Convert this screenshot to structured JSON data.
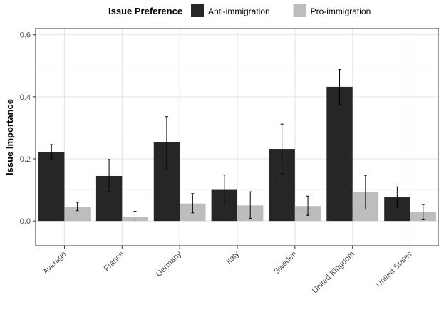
{
  "chart_data": {
    "type": "bar",
    "title": "",
    "xlabel": "",
    "ylabel": "Issue Importance",
    "ylim": [
      -0.08,
      0.62
    ],
    "yticks": [
      0.0,
      0.2,
      0.4,
      0.6
    ],
    "ytick_labels": [
      "0.0",
      "0.2",
      "0.4",
      "0.6"
    ],
    "grid": true,
    "legend": {
      "title": "Issue Preference",
      "placement": "top"
    },
    "categories": [
      "Average",
      "France",
      "Germany",
      "Italy",
      "Sweden",
      "United Kingdom",
      "United States"
    ],
    "series": [
      {
        "name": "Anti-immigration",
        "color": "#262626",
        "values": [
          0.222,
          0.145,
          0.253,
          0.1,
          0.232,
          0.432,
          0.076
        ],
        "err_low": [
          0.2,
          0.094,
          0.17,
          0.054,
          0.152,
          0.376,
          0.044
        ],
        "err_high": [
          0.246,
          0.198,
          0.336,
          0.148,
          0.312,
          0.488,
          0.11
        ]
      },
      {
        "name": "Pro-immigration",
        "color": "#bdbdbd",
        "values": [
          0.046,
          0.013,
          0.056,
          0.05,
          0.048,
          0.092,
          0.028
        ],
        "err_low": [
          0.033,
          -0.003,
          0.026,
          0.008,
          0.018,
          0.038,
          0.004
        ],
        "err_high": [
          0.06,
          0.031,
          0.088,
          0.094,
          0.08,
          0.147,
          0.053
        ]
      }
    ]
  }
}
